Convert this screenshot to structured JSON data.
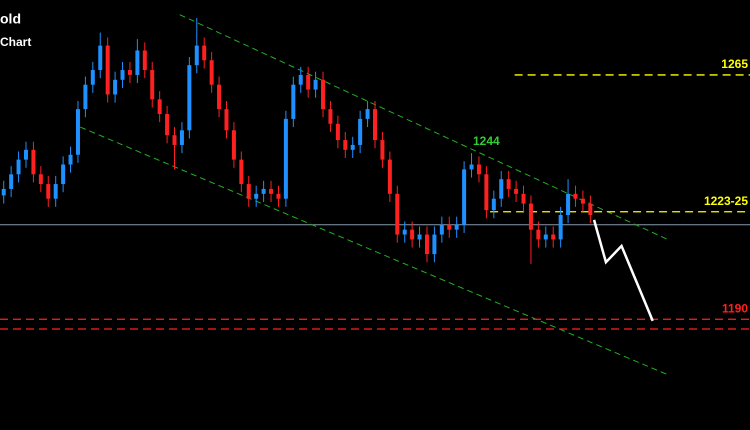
{
  "chart_data": {
    "type": "candlestick",
    "title": "old",
    "subtitle": "Chart",
    "xlim": [
      0,
      101
    ],
    "ylim": [
      1156,
      1288
    ],
    "up_color": "#1e90ff",
    "down_color": "#ff2020",
    "open": [
      1228,
      1230,
      1234.5,
      1239,
      1242,
      1234.5,
      1231.5,
      1227,
      1231.5,
      1237.5,
      1240.5,
      1254.5,
      1262,
      1266.5,
      1274,
      1259,
      1263.5,
      1266.5,
      1265,
      1272.5,
      1266.5,
      1257.5,
      1253,
      1246.5,
      1243.5,
      1248,
      1268,
      1274,
      1269.5,
      1262,
      1254.5,
      1248,
      1239,
      1231.5,
      1227,
      1228.5,
      1230,
      1228.5,
      1227,
      1251.5,
      1262,
      1265,
      1260.5,
      1263.5,
      1254.5,
      1250,
      1245,
      1242,
      1243.5,
      1251.5,
      1254.5,
      1245,
      1239,
      1228.5,
      1216,
      1217.5,
      1214.5,
      1216,
      1210,
      1216,
      1219,
      1217.5,
      1219,
      1236,
      1237.5,
      1234.5,
      1223.5,
      1227,
      1233,
      1230,
      1228.5,
      1225.5,
      1217.5,
      1214.5,
      1216,
      1214.5,
      1222,
      1228.5,
      1227,
      1225.5
    ],
    "high": [
      1232.5,
      1237,
      1241.5,
      1244.5,
      1244.5,
      1237,
      1234,
      1234,
      1240,
      1243,
      1257,
      1264.5,
      1269,
      1278,
      1276.5,
      1266,
      1269,
      1269,
      1276,
      1275,
      1269,
      1260,
      1255.5,
      1249,
      1250.5,
      1270.5,
      1282.5,
      1276.5,
      1272,
      1264.5,
      1257,
      1250.5,
      1241.5,
      1234,
      1231,
      1232.5,
      1232.5,
      1231,
      1254,
      1264.5,
      1267.5,
      1267.5,
      1266,
      1266,
      1257,
      1252.5,
      1247.5,
      1246,
      1254,
      1257,
      1257,
      1247.5,
      1241.5,
      1231,
      1220,
      1220,
      1218.5,
      1218.5,
      1218.5,
      1221.5,
      1221.5,
      1221.5,
      1238.5,
      1241,
      1240,
      1237,
      1229.5,
      1235.5,
      1235.5,
      1232.5,
      1231,
      1228,
      1220,
      1218.5,
      1218.5,
      1224.5,
      1233,
      1231,
      1229.5,
      1228
    ],
    "low": [
      1225.5,
      1227.5,
      1232,
      1236.5,
      1232,
      1229,
      1224.5,
      1224.5,
      1229,
      1235,
      1238,
      1252,
      1259.5,
      1264,
      1256.5,
      1256.5,
      1261,
      1262.5,
      1262.5,
      1264,
      1255,
      1250.5,
      1244,
      1236,
      1241,
      1245.5,
      1265.5,
      1267,
      1259.5,
      1252,
      1245.5,
      1236.5,
      1229,
      1224.5,
      1224.5,
      1226,
      1226,
      1224.5,
      1224.5,
      1249,
      1259.5,
      1258,
      1258,
      1252,
      1247.5,
      1242.5,
      1239.5,
      1239.5,
      1241,
      1249,
      1242.5,
      1236.5,
      1226,
      1213.5,
      1213.5,
      1212,
      1212,
      1207.5,
      1207.5,
      1213.5,
      1215,
      1215,
      1216.5,
      1233.5,
      1232,
      1221,
      1221,
      1224.5,
      1227.5,
      1226,
      1223,
      1207,
      1212,
      1212,
      1212,
      1212,
      1219.5,
      1224.5,
      1223,
      1219.5
    ],
    "close": [
      1230,
      1234.5,
      1239,
      1242,
      1234.5,
      1231.5,
      1227,
      1231.5,
      1237.5,
      1240.5,
      1254.5,
      1262,
      1266.5,
      1274,
      1259,
      1263.5,
      1266.5,
      1265,
      1272.5,
      1266.5,
      1257.5,
      1253,
      1246.5,
      1243.5,
      1248,
      1268,
      1274,
      1269.5,
      1262,
      1254.5,
      1248,
      1239,
      1231.5,
      1227,
      1228.5,
      1230,
      1228.5,
      1227,
      1251.5,
      1262,
      1265,
      1260.5,
      1263.5,
      1254.5,
      1250,
      1245,
      1242,
      1243.5,
      1251.5,
      1254.5,
      1245,
      1239,
      1228.5,
      1216,
      1217.5,
      1214.5,
      1216,
      1210,
      1216,
      1219,
      1217.5,
      1219,
      1236,
      1237.5,
      1234.5,
      1223.5,
      1227,
      1233,
      1230,
      1228.5,
      1225.5,
      1217.5,
      1214.5,
      1216,
      1214.5,
      1222,
      1228.5,
      1227,
      1225.5,
      1222
    ],
    "channels": [
      {
        "x": [
          24.2,
          89.9
        ],
        "y": [
          1283.5,
          1214.5
        ],
        "color": "#22b022"
      },
      {
        "x": [
          10.8,
          89.9
        ],
        "y": [
          1249,
          1173
        ],
        "color": "#22b022"
      }
    ],
    "levels": [
      {
        "value": 1265,
        "label": "1265",
        "color": "#ffff00",
        "x_start": 69.3
      },
      {
        "value": 1223,
        "label": "1223-25",
        "color": "#ffff00",
        "x_start": 66
      },
      {
        "value": 1190,
        "label": "1190",
        "color": "#ff2020",
        "x_start": 0
      },
      {
        "value": 1187,
        "color": "#ff2020",
        "x_start": 0
      }
    ],
    "price_line": {
      "value": 1219,
      "color": "#8899aa"
    },
    "projection": {
      "x": [
        80,
        81.6,
        83.7,
        87.9
      ],
      "y": [
        1220.5,
        1207.5,
        1212.5,
        1189.5
      ],
      "color": "#ffffff"
    },
    "annotation": {
      "text": "1244",
      "color": "#33cc33"
    }
  }
}
